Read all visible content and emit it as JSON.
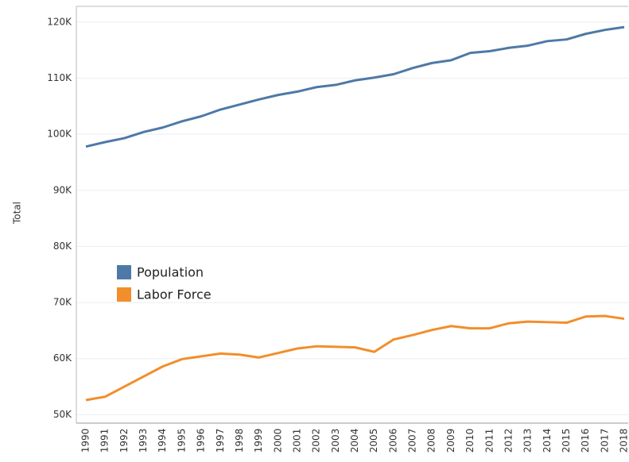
{
  "chart_data": {
    "type": "line",
    "y_label": "Total",
    "categories": [
      "1990",
      "1991",
      "1992",
      "1993",
      "1994",
      "1995",
      "1996",
      "1997",
      "1998",
      "1999",
      "2000",
      "2001",
      "2002",
      "2003",
      "2004",
      "2005",
      "2006",
      "2007",
      "2008",
      "2009",
      "2010",
      "2011",
      "2012",
      "2013",
      "2014",
      "2015",
      "2016",
      "2017",
      "2018"
    ],
    "series": [
      {
        "name": "Population",
        "color": "#4e79a7",
        "values": [
          97800,
          98600,
          99300,
          100400,
          101200,
          102300,
          103200,
          104400,
          105300,
          106200,
          107000,
          107600,
          108400,
          108800,
          109600,
          110100,
          110700,
          111800,
          112700,
          113200,
          114500,
          114800,
          115400,
          115800,
          116600,
          116900,
          117900,
          118600,
          119100
        ]
      },
      {
        "name": "Labor Force",
        "color": "#f28e2b",
        "values": [
          52600,
          53200,
          55000,
          56800,
          58600,
          59900,
          60400,
          60900,
          60700,
          60200,
          61000,
          61800,
          62200,
          62100,
          62000,
          61200,
          63400,
          64200,
          65100,
          65800,
          65400,
          65400,
          66300,
          66600,
          66500,
          66400,
          67500,
          67600,
          67100
        ]
      }
    ],
    "ylim": [
      48500,
      122800
    ],
    "yticks": [
      {
        "value": 50000,
        "label": "50K"
      },
      {
        "value": 60000,
        "label": "60K"
      },
      {
        "value": 70000,
        "label": "70K"
      },
      {
        "value": 80000,
        "label": "80K"
      },
      {
        "value": 90000,
        "label": "90K"
      },
      {
        "value": 100000,
        "label": "100K"
      },
      {
        "value": 110000,
        "label": "110K"
      },
      {
        "value": 120000,
        "label": "120K"
      }
    ],
    "grid": true,
    "legend": "left"
  }
}
